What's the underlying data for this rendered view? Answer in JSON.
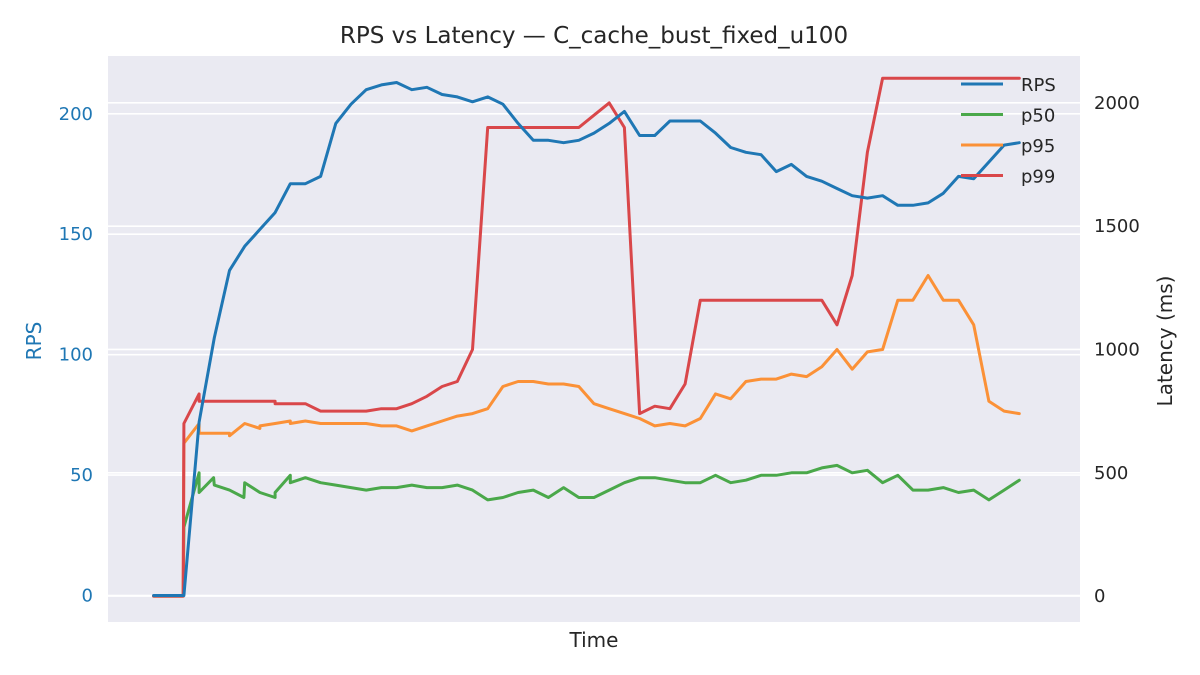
{
  "chart_data": {
    "type": "line",
    "title": "RPS vs Latency — C_cache_bust_fixed_u100",
    "xlabel": "Time",
    "ylabel_left": "RPS",
    "ylabel_right": "Latency (ms)",
    "ylim_left": [
      -11,
      224
    ],
    "ylim_right": [
      -105,
      2190
    ],
    "yticks_left": [
      0,
      50,
      100,
      150,
      200
    ],
    "yticks_right": [
      0,
      500,
      1000,
      1500,
      2000
    ],
    "xlim": [
      -3,
      61
    ],
    "grid": true,
    "legend_position": "top-right",
    "colors": {
      "background": "#eaeaf2",
      "grid": "#ffffff",
      "RPS": "#1f77b4",
      "p50": "#4aa84a",
      "p95": "#fb9137",
      "p99": "#d9474a"
    },
    "series": [
      {
        "name": "RPS",
        "axis": "left",
        "x": [
          0,
          1,
          2,
          3,
          4,
          5,
          6,
          7,
          8,
          9,
          10,
          11,
          12,
          13,
          14,
          15,
          16,
          17,
          18,
          19,
          20,
          21,
          22,
          23,
          24,
          25,
          26,
          27,
          28,
          29,
          30,
          31,
          32,
          33,
          34,
          35,
          36,
          37,
          38,
          39,
          40,
          41,
          42,
          43,
          44,
          45,
          46,
          47,
          48,
          49,
          50,
          51,
          52,
          53,
          54,
          55,
          56,
          57
        ],
        "values": [
          0,
          0,
          0,
          72,
          107,
          135,
          145,
          152,
          159,
          171,
          171,
          174,
          196,
          204,
          210,
          212,
          213,
          210,
          211,
          208,
          207,
          205,
          207,
          204,
          196,
          189,
          189,
          188,
          189,
          192,
          196,
          201,
          191,
          191,
          197,
          197,
          197,
          192,
          186,
          184,
          183,
          176,
          179,
          174,
          172,
          169,
          166,
          165,
          166,
          162,
          162,
          163,
          167,
          174,
          173,
          180,
          187,
          188
        ]
      },
      {
        "name": "p50",
        "axis": "right",
        "x": [
          0,
          1,
          1.95,
          2,
          3,
          3,
          3.95,
          4,
          5,
          5.95,
          6,
          7,
          8,
          8,
          9,
          9,
          10,
          11,
          12,
          13,
          14,
          15,
          16,
          17,
          18,
          19,
          20,
          21,
          22,
          23,
          24,
          25,
          26,
          27,
          28,
          29,
          30,
          31,
          32,
          33,
          34,
          35,
          36,
          37,
          38,
          39,
          40,
          41,
          42,
          43,
          44,
          45,
          46,
          47,
          48,
          49,
          50,
          51,
          52,
          53,
          54,
          55,
          56,
          57
        ],
        "values": [
          0,
          0,
          0,
          280,
          500,
          420,
          480,
          450,
          430,
          400,
          460,
          420,
          400,
          420,
          490,
          460,
          480,
          460,
          450,
          440,
          430,
          440,
          440,
          450,
          440,
          440,
          450,
          430,
          390,
          400,
          420,
          430,
          400,
          440,
          400,
          400,
          430,
          460,
          480,
          480,
          470,
          460,
          460,
          490,
          460,
          470,
          490,
          490,
          500,
          500,
          520,
          530,
          500,
          510,
          460,
          490,
          430,
          430,
          440,
          420,
          430,
          390,
          430,
          470
        ]
      },
      {
        "name": "p95",
        "axis": "right",
        "x": [
          0,
          1,
          1.95,
          2,
          3,
          3,
          4,
          5,
          5,
          6,
          7,
          7,
          8,
          9,
          9,
          10,
          11,
          12,
          13,
          14,
          15,
          16,
          17,
          18,
          19,
          20,
          21,
          22,
          23,
          24,
          25,
          26,
          27,
          28,
          29,
          30,
          31,
          32,
          33,
          34,
          35,
          36,
          37,
          38,
          39,
          40,
          41,
          42,
          43,
          44,
          45,
          46,
          47,
          48,
          49,
          50,
          51,
          52,
          53,
          54,
          55,
          56,
          57
        ],
        "values": [
          0,
          0,
          0,
          620,
          700,
          660,
          660,
          660,
          650,
          700,
          680,
          690,
          700,
          710,
          700,
          710,
          700,
          700,
          700,
          700,
          690,
          690,
          670,
          690,
          710,
          730,
          740,
          760,
          850,
          870,
          870,
          860,
          860,
          850,
          780,
          760,
          740,
          720,
          690,
          700,
          690,
          720,
          820,
          800,
          870,
          880,
          880,
          900,
          890,
          930,
          1000,
          920,
          990,
          1000,
          1200,
          1200,
          1300,
          1200,
          1200,
          1100,
          790,
          750,
          740
        ]
      },
      {
        "name": "p99",
        "axis": "right",
        "x": [
          0,
          1,
          1.95,
          2,
          3,
          3,
          4,
          5,
          6,
          7,
          8,
          8,
          9,
          10,
          11,
          12,
          13,
          14,
          15,
          16,
          17,
          18,
          19,
          20,
          21,
          22,
          23,
          24,
          25,
          26,
          27,
          28,
          29,
          30,
          31,
          32,
          33,
          34,
          35,
          36,
          37,
          38,
          39,
          40,
          41,
          42,
          43,
          44,
          45,
          46,
          47,
          48,
          49,
          50,
          51,
          52,
          53,
          54,
          55,
          56,
          57
        ],
        "values": [
          0,
          0,
          0,
          700,
          820,
          790,
          790,
          790,
          790,
          790,
          790,
          780,
          780,
          780,
          750,
          750,
          750,
          750,
          760,
          760,
          780,
          810,
          850,
          870,
          1000,
          1900,
          1900,
          1900,
          1900,
          1900,
          1900,
          1900,
          1950,
          2000,
          1900,
          740,
          770,
          760,
          860,
          1200,
          1200,
          1200,
          1200,
          1200,
          1200,
          1200,
          1200,
          1200,
          1100,
          1300,
          1800,
          2100,
          2100,
          2100,
          2100,
          2100,
          2100,
          2100,
          2100,
          2100,
          2100
        ]
      }
    ]
  }
}
